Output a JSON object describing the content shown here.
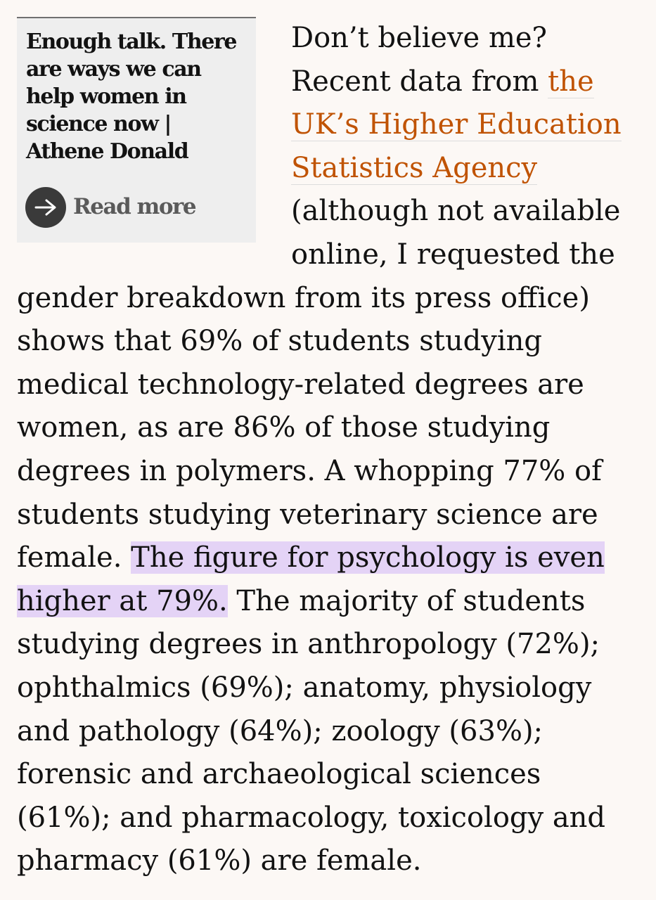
{
  "rich_link": {
    "title": "Enough talk. There are ways we can help women in science now | Athene Donald",
    "read_more_label": "Read more",
    "icon": "arrow-right-icon"
  },
  "article": {
    "text_1": "Don’t believe me? Recent data from ",
    "link_text": "the UK’s Higher Education Statistics Agency",
    "text_2": " (although not available online, I requested the gender breakdown from its press office) shows that 69% of students studying medical technology-related degrees are women, as are 86% of those studying degrees in polymers. A whopping 77% of students studying veterinary science are female. ",
    "highlight_text": "The figure for psychology is even higher at 79%.",
    "text_3": " The majority of students studying degrees in anthropology (72%); ophthalmics (69%); anatomy, physiology and pathology (64%); zoology (63%); forensic and archaeological sciences (61%); and pharmacology, toxicology and pharmacy (61%) are female."
  },
  "colors": {
    "background": "#fcf8f5",
    "link": "#c05303",
    "highlight": "#e4d3f6",
    "rich_link_bg": "#eeeeee"
  }
}
